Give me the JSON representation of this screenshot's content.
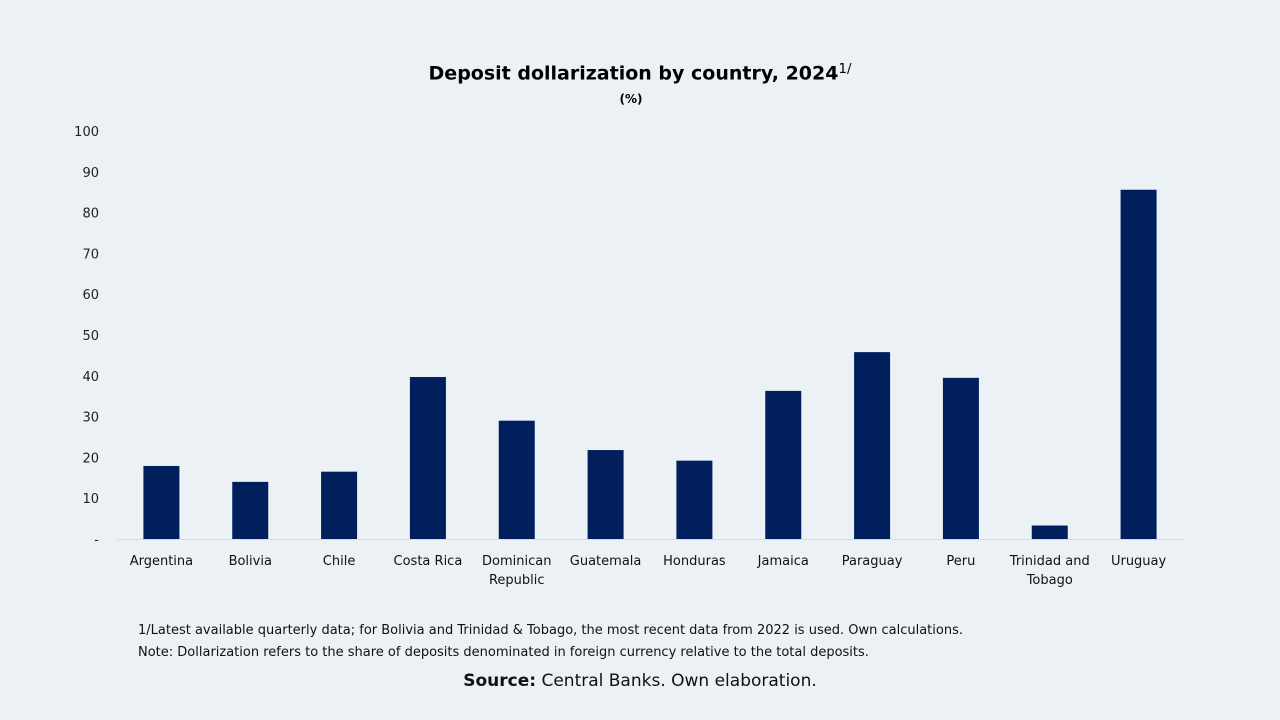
{
  "header": {
    "title": "Deposit dollarization by country, 2024",
    "title_sup": "1/",
    "subtitle": "(%)"
  },
  "chart_data": {
    "type": "bar",
    "title": "Deposit dollarization by country, 2024",
    "subtitle": "(%)",
    "categories": [
      "Argentina",
      "Bolivia",
      "Chile",
      "Costa Rica",
      "Dominican Republic",
      "Guatemala",
      "Honduras",
      "Jamaica",
      "Paraguay",
      "Peru",
      "Trinidad and Tobago",
      "Uruguay"
    ],
    "category_lines": [
      [
        "Argentina"
      ],
      [
        "Bolivia"
      ],
      [
        "Chile"
      ],
      [
        "Costa Rica"
      ],
      [
        "Dominican",
        "Republic"
      ],
      [
        "Guatemala"
      ],
      [
        "Honduras"
      ],
      [
        "Jamaica"
      ],
      [
        "Paraguay"
      ],
      [
        "Peru"
      ],
      [
        "Trinidad and",
        "Tobago"
      ],
      [
        "Uruguay"
      ]
    ],
    "values": [
      17.9,
      14.0,
      16.5,
      39.7,
      29.0,
      21.8,
      19.2,
      36.3,
      45.8,
      39.5,
      3.3,
      85.6
    ],
    "ylim": [
      0,
      100
    ],
    "yticks": [
      0,
      10,
      20,
      30,
      40,
      50,
      60,
      70,
      80,
      90,
      100
    ],
    "ytick_labels": [
      "-",
      "10",
      "20",
      "30",
      "40",
      "50",
      "60",
      "70",
      "80",
      "90",
      "100"
    ],
    "bar_color": "#001f5c",
    "grid": false,
    "legend": false
  },
  "footer": {
    "note1": "1/Latest available quarterly data; for Bolivia and Trinidad & Tobago, the most recent data from 2022 is used. Own calculations.",
    "note2": "Note: Dollarization refers to the share of deposits denominated in foreign currency relative to the total deposits.",
    "source_label": "Source:",
    "source_text": " Central Banks. Own elaboration."
  }
}
